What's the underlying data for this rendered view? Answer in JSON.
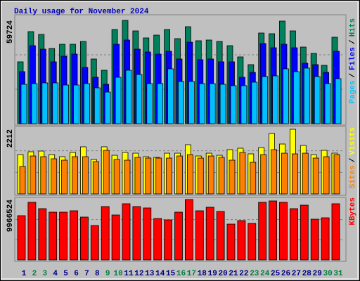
{
  "chart_data": [
    {
      "type": "bar",
      "title": "Daily usage for November 2024",
      "legend_separator": "/",
      "ylim": [
        0,
        59724
      ],
      "yticks": [
        59724
      ],
      "series": [
        {
          "name": "Hits",
          "color": "#00805c",
          "values": [
            35754,
            53225,
            51600,
            43474,
            45912,
            45912,
            47537,
            37379,
            30878,
            54444,
            59724,
            53632,
            49569,
            51194,
            54444,
            49162,
            56069,
            47943,
            48349,
            47537,
            45099,
            38598,
            34129,
            52412,
            52006,
            59318,
            53632,
            44286,
            40630,
            33723,
            49975
          ]
        },
        {
          "name": "Files",
          "color": "#0000ff",
          "values": [
            30066,
            45099,
            43068,
            35754,
            39005,
            40224,
            32504,
            26816,
            22753,
            45912,
            48350,
            43068,
            41443,
            40224,
            41849,
            37380,
            47131,
            36973,
            37380,
            35754,
            35754,
            26816,
            29660,
            46318,
            43880,
            45912,
            43880,
            34942,
            34129,
            29660,
            41849
          ]
        },
        {
          "name": "Pages",
          "color": "#00c0ff",
          "values": [
            22753,
            23159,
            23565,
            23565,
            22347,
            22347,
            23159,
            20721,
            18284,
            26816,
            30879,
            28441,
            23159,
            23159,
            31691,
            24378,
            24378,
            23159,
            23159,
            22753,
            21940,
            21940,
            23972,
            27222,
            27628,
            31691,
            30066,
            32098,
            27222,
            23159,
            26003
          ]
        }
      ]
    },
    {
      "type": "bar",
      "legend_separator": "/",
      "ylim": [
        0,
        2212
      ],
      "yticks": [
        2212
      ],
      "series": [
        {
          "name": "Visits",
          "color": "#ffff00",
          "values": [
            1346,
            1442,
            1466,
            1346,
            1274,
            1418,
            1611,
            1178,
            1611,
            1322,
            1418,
            1394,
            1274,
            1250,
            1394,
            1394,
            1683,
            1298,
            1394,
            1322,
            1515,
            1563,
            1370,
            1587,
            2067,
            1707,
            2212,
            1659,
            1346,
            1490,
            1394
          ]
        },
        {
          "name": "Sites",
          "color": "#ff8000",
          "values": [
            938,
            1298,
            1274,
            1202,
            1154,
            1274,
            1274,
            1106,
            1490,
            1178,
            1154,
            1250,
            1226,
            1226,
            1226,
            1298,
            1346,
            1226,
            1298,
            1250,
            1154,
            1418,
            1082,
            1346,
            1515,
            1394,
            1370,
            1394,
            1226,
            1274,
            1346
          ]
        }
      ]
    },
    {
      "type": "bar",
      "ylim": [
        0,
        9966524
      ],
      "yticks": [
        9966524
      ],
      "categories": [
        "1",
        "2",
        "3",
        "4",
        "5",
        "6",
        "7",
        "8",
        "9",
        "10",
        "11",
        "12",
        "13",
        "14",
        "15",
        "16",
        "17",
        "18",
        "19",
        "20",
        "21",
        "22",
        "23",
        "24",
        "25",
        "26",
        "27",
        "28",
        "29",
        "30",
        "31"
      ],
      "category_colors": [
        "#000080",
        "#008040",
        "#008040",
        "#000080",
        "#000080",
        "#000080",
        "#000080",
        "#000080",
        "#008040",
        "#008040",
        "#000080",
        "#000080",
        "#000080",
        "#000080",
        "#000080",
        "#008040",
        "#008040",
        "#000080",
        "#000080",
        "#000080",
        "#000080",
        "#000080",
        "#008040",
        "#008040",
        "#000080",
        "#000080",
        "#000080",
        "#000080",
        "#000080",
        "#008040",
        "#008040"
      ],
      "series": [
        {
          "name": "KBytes",
          "color": "#ff0000",
          "values": [
            7301070,
            9502980,
            8459970,
            7880520,
            7880520,
            8112300,
            7069290,
            5678610,
            8807640,
            7416960,
            9271200,
            8807640,
            8575860,
            6837510,
            6605730,
            7880520,
            9966524,
            8112300,
            8691750,
            7996410,
            5910390,
            6489840,
            6026280,
            9502980,
            9734760,
            9502980,
            8459970,
            9039420,
            6721620,
            6953400,
            9271200
          ]
        }
      ]
    }
  ]
}
